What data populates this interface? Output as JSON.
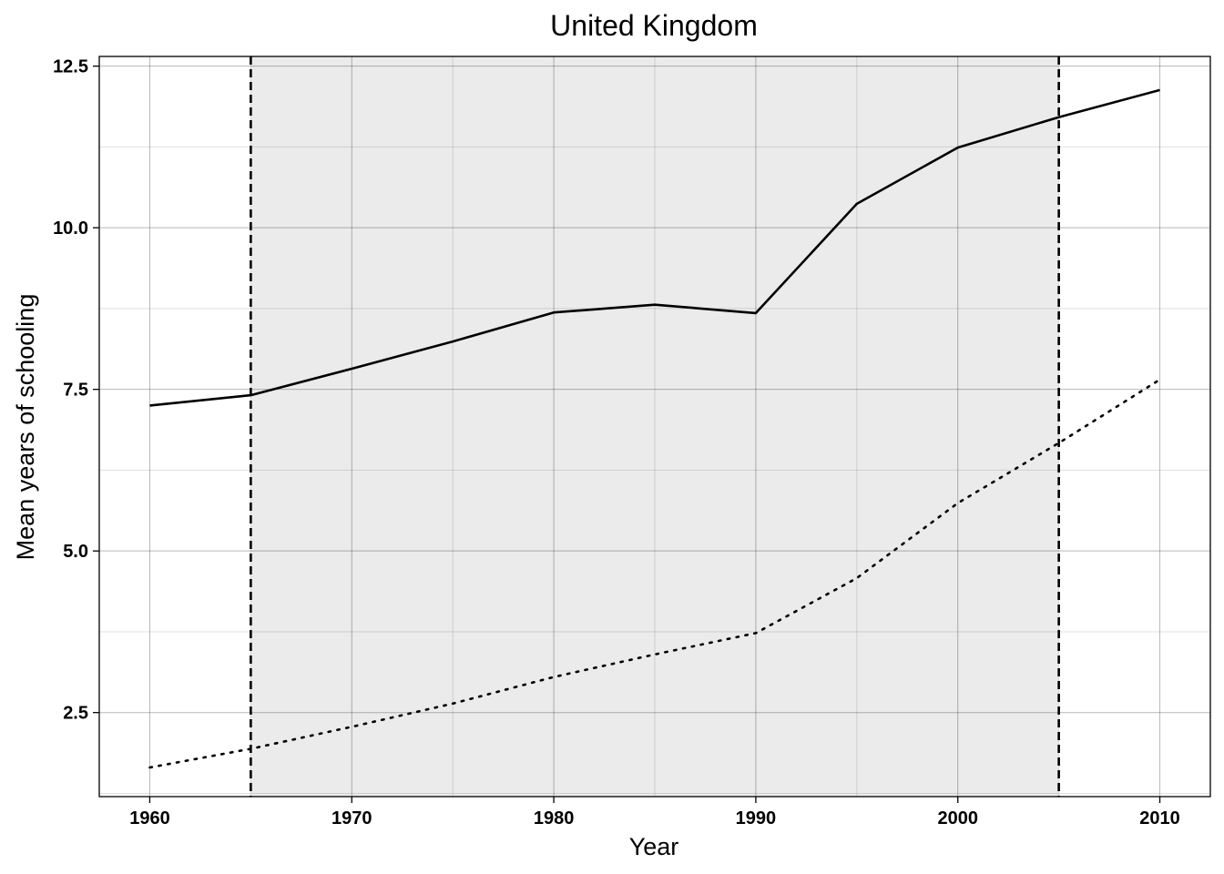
{
  "chart_data": {
    "type": "line",
    "title": "United Kingdom",
    "xlabel": "Year",
    "ylabel": "Mean years of schooling",
    "xlim": [
      1957.5,
      2012.5
    ],
    "ylim": [
      1.2,
      12.65
    ],
    "x_ticks": [
      1960,
      1970,
      1980,
      1990,
      2000,
      2010
    ],
    "y_ticks": [
      2.5,
      5.0,
      7.5,
      10.0,
      12.5
    ],
    "x_tick_labels": [
      "1960",
      "1970",
      "1980",
      "1990",
      "2000",
      "2010"
    ],
    "y_tick_labels": [
      "2.5",
      "5.0",
      "7.5",
      "10.0",
      "12.5"
    ],
    "grid": true,
    "shaded_region": {
      "x_start": 1965,
      "x_end": 2005,
      "color": "#ebebeb",
      "boundary_style": "dashed"
    },
    "series": [
      {
        "style": "solid",
        "color": "#000000",
        "x": [
          1960,
          1965,
          1970,
          1975,
          1980,
          1985,
          1990,
          1995,
          2000,
          2005,
          2010
        ],
        "y": [
          7.25,
          7.41,
          7.82,
          8.24,
          8.69,
          8.81,
          8.68,
          10.37,
          11.24,
          11.71,
          12.13
        ]
      },
      {
        "style": "dotted",
        "color": "#000000",
        "x": [
          1960,
          1965,
          1970,
          1975,
          1980,
          1985,
          1990,
          1995,
          2000,
          2005,
          2010
        ],
        "y": [
          1.65,
          1.94,
          2.28,
          2.64,
          3.05,
          3.4,
          3.73,
          4.58,
          5.74,
          6.67,
          7.65
        ]
      }
    ]
  }
}
